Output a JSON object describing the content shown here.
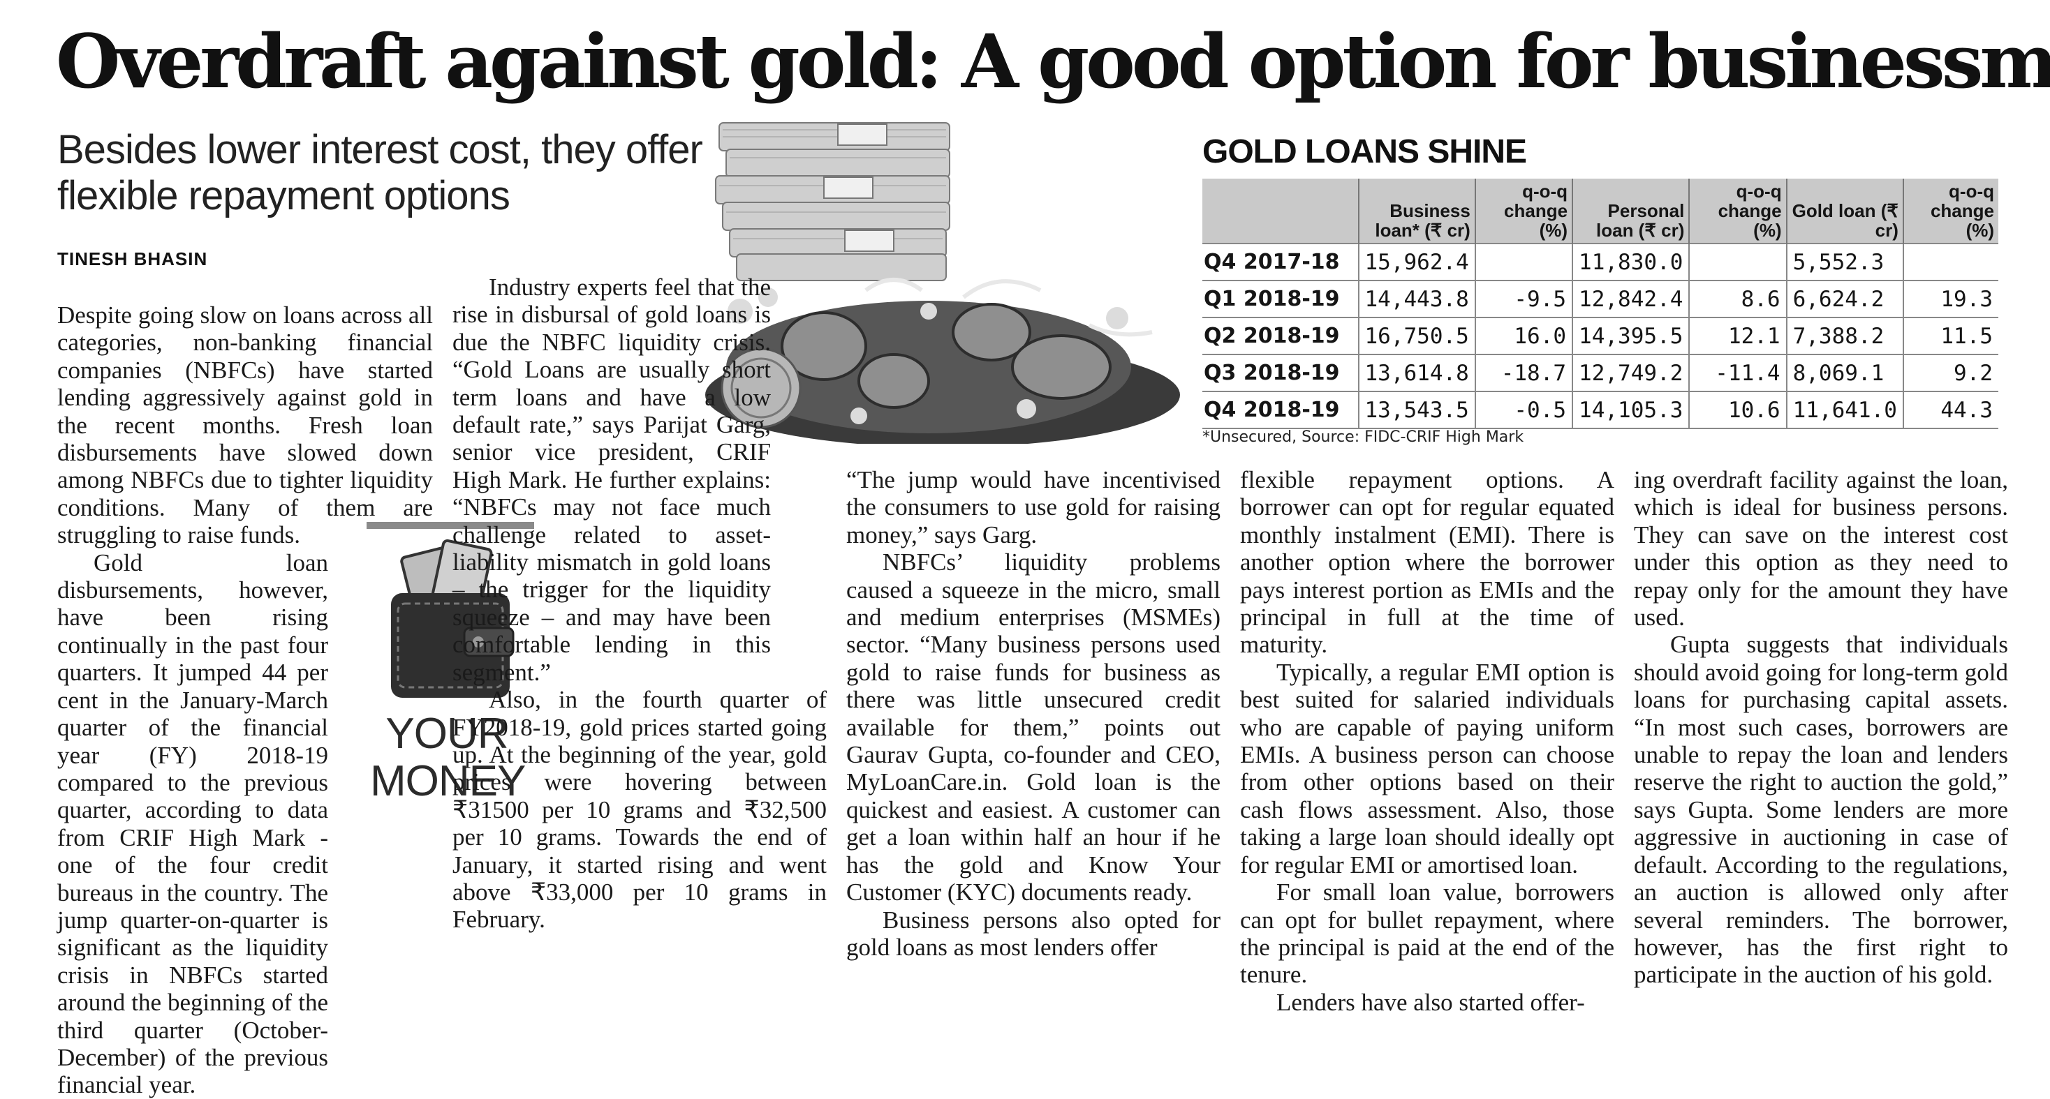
{
  "headline": "Overdraft against gold: A good option for businessmen",
  "dek": "Besides lower interest cost, they offer flexible repayment options",
  "byline": "TINESH BHASIN",
  "your_money": "YOUR MONEY",
  "table": {
    "title": "GOLD LOANS SHINE",
    "headers": [
      "",
      "Business loan* (₹ cr)",
      "q-o-q change (%)",
      "Personal loan (₹ cr)",
      "q-o-q change (%)",
      "Gold loan (₹ cr)",
      "q-o-q change (%)"
    ],
    "rows": [
      [
        "Q4 2017-18",
        "15,962.4",
        "",
        "11,830.0",
        "",
        "5,552.3",
        ""
      ],
      [
        "Q1 2018-19",
        "14,443.8",
        "-9.5",
        "12,842.4",
        "8.6",
        "6,624.2",
        "19.3"
      ],
      [
        "Q2 2018-19",
        "16,750.5",
        "16.0",
        "14,395.5",
        "12.1",
        "7,388.2",
        "11.5"
      ],
      [
        "Q3 2018-19",
        "13,614.8",
        "-18.7",
        "12,749.2",
        "-11.4",
        "8,069.1",
        "9.2"
      ],
      [
        "Q4 2018-19",
        "13,543.5",
        "-0.5",
        "14,105.3",
        "10.6",
        "11,641.0",
        "44.3"
      ]
    ],
    "source": "*Unsecured, Source: FIDC-CRIF High Mark"
  },
  "article": {
    "col1": [
      "Despite going slow on loans across all categories, non-banking financial companies (NBFCs) have started lending aggressively against gold in the recent months. Fresh loan disbursements have slowed down among NBFCs due to tighter liquidity conditions. Many of them are struggling to raise funds.",
      "Gold loan disbursements, however, have been rising continually in the past four quarters. It jumped 44 per cent in the January-March quarter of the financial year (FY) 2018-19 compared to the previous quarter, according to data from CRIF High Mark - one of the four credit bureaus in the country. The jump quarter-on-quarter is significant as the liquidity crisis in NBFCs started around the beginning of the third quarter (October-December) of the previous financial year."
    ],
    "col2": [
      "Industry experts feel that the rise in disbursal of gold loans is due the NBFC liquidity crisis. “Gold Loans are usually short term loans and have a low default rate,” says Parijat Garg, senior vice president, CRIF High Mark. He further explains: “NBFCs may not face much challenge related to asset-liability mismatch in gold loans – the trigger for the liquidity squeeze – and may have been comfortable lending in this segment.”",
      "Also, in the fourth quarter of FY2018-19, gold prices started going up. At the beginning of the year, gold prices were hovering between ₹31500 per 10 grams and ₹32,500 per 10 grams. Towards the end of January, it started rising and went above ₹33,000 per 10 grams in February."
    ],
    "col3": [
      "“The jump would have incentivised the consumers to use gold for raising money,” says Garg.",
      "NBFCs’ liquidity problems caused a squeeze in the micro, small and medium enterprises (MSMEs) sector. “Many business persons used gold to raise funds for business as there was little unsecured credit available for them,” points out Gaurav Gupta, co-founder and CEO, MyLoanCare.in. Gold loan is the quickest and easiest. A customer can get a loan within half an hour if he has the gold and Know Your Customer (KYC) documents ready.",
      "Business persons also opted for gold loans as most lenders offer"
    ],
    "col4": [
      "flexible repayment options. A borrower can opt for regular equated monthly instalment (EMI). There is another option where the borrower pays interest portion as EMIs and the principal in full at the time of maturity.",
      "Typically, a regular EMI option is best suited for salaried individuals who are capable of paying uniform EMIs. A business person can choose from other options based on their cash flows assessment. Also, those taking a large loan should ideally opt for regular EMI or amortised loan.",
      "For small loan value, borrowers can opt for bullet repayment, where the principal is paid at the end of the tenure.",
      "Lenders have also started offer-"
    ],
    "col5": [
      "ing overdraft facility against the loan, which is ideal for business persons. They can save on the interest cost under this option as they need to repay only for the amount they have used.",
      "Gupta suggests that individuals should avoid going for long-term gold loans for purchasing capital assets. “In most such cases, borrowers are unable to repay the loan and lenders reserve the right to auction the gold,” says Gupta. Some lenders are more aggressive in auctioning in case of default. According to the regulations, an auction is allowed only after several reminders. The borrower, however, has the first right to participate in the auction of his gold."
    ]
  }
}
